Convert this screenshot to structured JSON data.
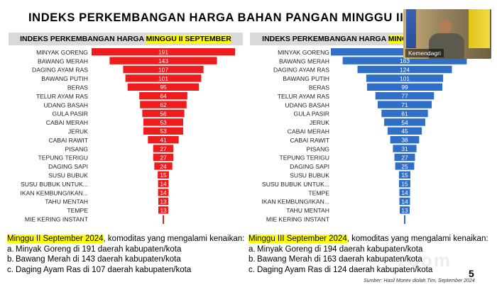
{
  "slide": {
    "title": "INDEKS PERKEMBANGAN HARGA BAHAN PANGAN MINGGU III SE",
    "page_number": "5",
    "source": "Sumber: Hasil Monev diolah Tim, September 2024",
    "watermark": "zoom"
  },
  "webcam": {
    "name_tag": "Kemendagri"
  },
  "left_panel": {
    "header_prefix": "INDEKS PERKEMBANGAN HARGA ",
    "header_highlight": "MINGGU II SEPTEMBER",
    "summary_period": "Minggu II September 2024",
    "summary_text": ", komoditas yang mengalami kenaikan:",
    "items": [
      {
        "letter": "a.",
        "text": "Minyak Goreng di 191 daerah kabupaten/kota"
      },
      {
        "letter": "b.",
        "text": "Bawang Merah di 143 daerah kabupaten/kota"
      },
      {
        "letter": "c.",
        "text": "Daging Ayam Ras di 107 daerah kabupaten/kota"
      }
    ]
  },
  "right_panel": {
    "header_prefix": "INDEKS PERKEMBANGAN HARGA ",
    "header_highlight": "MINGGU III SEPTEMBER",
    "summary_period": "Minggu III September 2024",
    "summary_text": ", komoditas yang mengalami kenaikan:",
    "items": [
      {
        "letter": "a.",
        "text": "Minyak Goreng di 194 daerah kabupaten/kota"
      },
      {
        "letter": "b.",
        "text": "Bawang Merah di 163 daerah kabupaten/kota"
      },
      {
        "letter": "c.",
        "text": "Daging Ayam Ras di 124 daerah kabupaten/kota"
      }
    ]
  },
  "colors": {
    "left_bar": "#ee1c1c",
    "right_bar": "#2f6fc7",
    "highlight": "#ffff00",
    "header_bg": "#d9d9d9"
  },
  "chart_data": [
    {
      "type": "bar",
      "orientation": "horizontal-centered",
      "categories": [
        "MINYAK GORENG",
        "BAWANG MERAH",
        "DAGING AYAM RAS",
        "BAWANG PUTIH",
        "BERAS",
        "TELUR AYAM RAS",
        "UDANG BASAH",
        "GULA PASIR",
        "CABAI MERAH",
        "JERUK",
        "CABAI RAWIT",
        "PISANG",
        "TEPUNG TERIGU",
        "DAGING SAPI",
        "SUSU BUBUK",
        "SUSU BUBUK UNTUK...",
        "IKAN KEMBUNG/IKAN...",
        "TAHU MENTAH",
        "TEMPE",
        "MIE KERING INSTANT"
      ],
      "values": [
        191,
        143,
        107,
        101,
        95,
        64,
        62,
        56,
        53,
        53,
        41,
        27,
        27,
        24,
        15,
        14,
        14,
        13,
        13,
        null
      ],
      "labels": [
        "191",
        "143",
        "107",
        "101",
        "95",
        "64",
        "62",
        "56",
        "53",
        "53",
        "41",
        "27",
        "27",
        "24",
        "15",
        "14",
        "14",
        "13",
        "13",
        ""
      ],
      "xlim": [
        0,
        191
      ],
      "title": ""
    },
    {
      "type": "bar",
      "orientation": "horizontal-centered",
      "categories": [
        "MINYAK GORENG",
        "BAWANG MERAH",
        "DAGING AYAM RAS",
        "BAWANG PUTIH",
        "BERAS",
        "TELUR AYAM RAS",
        "UDANG BASAH",
        "GULA PASIR",
        "JERUK",
        "CABAI MERAH",
        "CABAI RAWIT",
        "PISANG",
        "TEPUNG TERIGU",
        "DAGING SAPI",
        "SUSU BUBUK",
        "SUSU BUBUK UNTUK...",
        "TEMPE",
        "IKAN KEMBUNG/IKAN...",
        "TAHU MENTAH",
        "MIE KERING INSTANT"
      ],
      "values": [
        194,
        163,
        124,
        101,
        99,
        77,
        71,
        61,
        54,
        45,
        38,
        31,
        27,
        25,
        15,
        15,
        14,
        14,
        13,
        null
      ],
      "labels": [
        "",
        "163",
        "124",
        "101",
        "99",
        "77",
        "71",
        "61",
        "54",
        "45",
        "38",
        "31",
        "27",
        "25",
        "15",
        "15",
        "14",
        "14",
        "13",
        ""
      ],
      "xlim": [
        0,
        194
      ],
      "title": ""
    }
  ]
}
